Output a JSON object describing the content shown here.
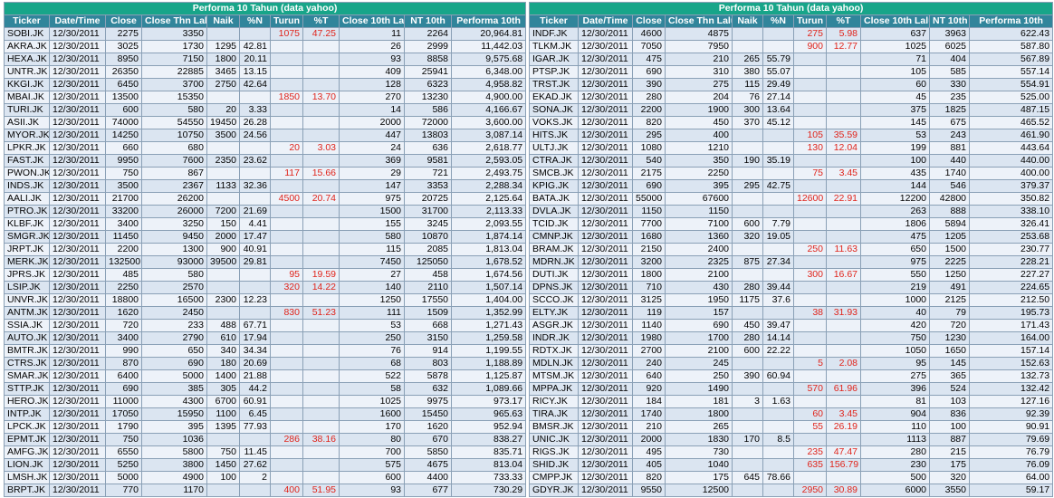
{
  "columns": [
    "Ticker",
    "Date/Time",
    "Close",
    "Close Thn Lalu",
    "Naik",
    "%N",
    "Turun",
    "%T",
    "Close 10th Lalu",
    "NT 10th",
    "Performa 10th"
  ],
  "tables": [
    {
      "title": "Performa 10 Tahun (data yahoo)",
      "rows": [
        [
          "SOBI.JK",
          "12/30/2011",
          "2275",
          "3350",
          "",
          "",
          "1075",
          "47.25",
          "11",
          "2264",
          "20,964.81"
        ],
        [
          "AKRA.JK",
          "12/30/2011",
          "3025",
          "1730",
          "1295",
          "42.81",
          "",
          "",
          "26",
          "2999",
          "11,442.03"
        ],
        [
          "HEXA.JK",
          "12/30/2011",
          "8950",
          "7150",
          "1800",
          "20.11",
          "",
          "",
          "93",
          "8858",
          "9,575.68"
        ],
        [
          "UNTR.JK",
          "12/30/2011",
          "26350",
          "22885",
          "3465",
          "13.15",
          "",
          "",
          "409",
          "25941",
          "6,348.00"
        ],
        [
          "KKGI.JK",
          "12/30/2011",
          "6450",
          "3700",
          "2750",
          "42.64",
          "",
          "",
          "128",
          "6323",
          "4,958.82"
        ],
        [
          "MBAI.JK",
          "12/30/2011",
          "13500",
          "15350",
          "",
          "",
          "1850",
          "13.70",
          "270",
          "13230",
          "4,900.00"
        ],
        [
          "TURI.JK",
          "12/30/2011",
          "600",
          "580",
          "20",
          "3.33",
          "",
          "",
          "14",
          "586",
          "4,166.67"
        ],
        [
          "ASII.JK",
          "12/30/2011",
          "74000",
          "54550",
          "19450",
          "26.28",
          "",
          "",
          "2000",
          "72000",
          "3,600.00"
        ],
        [
          "MYOR.JK",
          "12/30/2011",
          "14250",
          "10750",
          "3500",
          "24.56",
          "",
          "",
          "447",
          "13803",
          "3,087.14"
        ],
        [
          "LPKR.JK",
          "12/30/2011",
          "660",
          "680",
          "",
          "",
          "20",
          "3.03",
          "24",
          "636",
          "2,618.77"
        ],
        [
          "FAST.JK",
          "12/30/2011",
          "9950",
          "7600",
          "2350",
          "23.62",
          "",
          "",
          "369",
          "9581",
          "2,593.05"
        ],
        [
          "PWON.JK",
          "12/30/2011",
          "750",
          "867",
          "",
          "",
          "117",
          "15.66",
          "29",
          "721",
          "2,493.75"
        ],
        [
          "INDS.JK",
          "12/30/2011",
          "3500",
          "2367",
          "1133",
          "32.36",
          "",
          "",
          "147",
          "3353",
          "2,288.34"
        ],
        [
          "AALI.JK",
          "12/30/2011",
          "21700",
          "26200",
          "",
          "",
          "4500",
          "20.74",
          "975",
          "20725",
          "2,125.64"
        ],
        [
          "PTRO.JK",
          "12/30/2011",
          "33200",
          "26000",
          "7200",
          "21.69",
          "",
          "",
          "1500",
          "31700",
          "2,113.33"
        ],
        [
          "KLBF.JK",
          "12/30/2011",
          "3400",
          "3250",
          "150",
          "4.41",
          "",
          "",
          "155",
          "3245",
          "2,093.55"
        ],
        [
          "SMGR.JK",
          "12/30/2011",
          "11450",
          "9450",
          "2000",
          "17.47",
          "",
          "",
          "580",
          "10870",
          "1,874.14"
        ],
        [
          "JRPT.JK",
          "12/30/2011",
          "2200",
          "1300",
          "900",
          "40.91",
          "",
          "",
          "115",
          "2085",
          "1,813.04"
        ],
        [
          "MERK.JK",
          "12/30/2011",
          "132500",
          "93000",
          "39500",
          "29.81",
          "",
          "",
          "7450",
          "125050",
          "1,678.52"
        ],
        [
          "JPRS.JK",
          "12/30/2011",
          "485",
          "580",
          "",
          "",
          "95",
          "19.59",
          "27",
          "458",
          "1,674.56"
        ],
        [
          "LSIP.JK",
          "12/30/2011",
          "2250",
          "2570",
          "",
          "",
          "320",
          "14.22",
          "140",
          "2110",
          "1,507.14"
        ],
        [
          "UNVR.JK",
          "12/30/2011",
          "18800",
          "16500",
          "2300",
          "12.23",
          "",
          "",
          "1250",
          "17550",
          "1,404.00"
        ],
        [
          "ANTM.JK",
          "12/30/2011",
          "1620",
          "2450",
          "",
          "",
          "830",
          "51.23",
          "111",
          "1509",
          "1,352.99"
        ],
        [
          "SSIA.JK",
          "12/30/2011",
          "720",
          "233",
          "488",
          "67.71",
          "",
          "",
          "53",
          "668",
          "1,271.43"
        ],
        [
          "AUTO.JK",
          "12/30/2011",
          "3400",
          "2790",
          "610",
          "17.94",
          "",
          "",
          "250",
          "3150",
          "1,259.58"
        ],
        [
          "BMTR.JK",
          "12/30/2011",
          "990",
          "650",
          "340",
          "34.34",
          "",
          "",
          "76",
          "914",
          "1,199.55"
        ],
        [
          "CTRS.JK",
          "12/30/2011",
          "870",
          "690",
          "180",
          "20.69",
          "",
          "",
          "68",
          "803",
          "1,188.89"
        ],
        [
          "SMAR.JK",
          "12/30/2011",
          "6400",
          "5000",
          "1400",
          "21.88",
          "",
          "",
          "522",
          "5878",
          "1,125.87"
        ],
        [
          "STTP.JK",
          "12/30/2011",
          "690",
          "385",
          "305",
          "44.2",
          "",
          "",
          "58",
          "632",
          "1,089.66"
        ],
        [
          "HERO.JK",
          "12/30/2011",
          "11000",
          "4300",
          "6700",
          "60.91",
          "",
          "",
          "1025",
          "9975",
          "973.17"
        ],
        [
          "INTP.JK",
          "12/30/2011",
          "17050",
          "15950",
          "1100",
          "6.45",
          "",
          "",
          "1600",
          "15450",
          "965.63"
        ],
        [
          "LPCK.JK",
          "12/30/2011",
          "1790",
          "395",
          "1395",
          "77.93",
          "",
          "",
          "170",
          "1620",
          "952.94"
        ],
        [
          "EPMT.JK",
          "12/30/2011",
          "750",
          "1036",
          "",
          "",
          "286",
          "38.16",
          "80",
          "670",
          "838.27"
        ],
        [
          "AMFG.JK",
          "12/30/2011",
          "6550",
          "5800",
          "750",
          "11.45",
          "",
          "",
          "700",
          "5850",
          "835.71"
        ],
        [
          "LION.JK",
          "12/30/2011",
          "5250",
          "3800",
          "1450",
          "27.62",
          "",
          "",
          "575",
          "4675",
          "813.04"
        ],
        [
          "LMSH.JK",
          "12/30/2011",
          "5000",
          "4900",
          "100",
          "2",
          "",
          "",
          "600",
          "4400",
          "733.33"
        ],
        [
          "BRPT.JK",
          "12/30/2011",
          "770",
          "1170",
          "",
          "",
          "400",
          "51.95",
          "93",
          "677",
          "730.29"
        ]
      ]
    },
    {
      "title": "Performa 10 Tahun (data yahoo)",
      "rows": [
        [
          "INDF.JK",
          "12/30/2011",
          "4600",
          "4875",
          "",
          "",
          "275",
          "5.98",
          "637",
          "3963",
          "622.43"
        ],
        [
          "TLKM.JK",
          "12/30/2011",
          "7050",
          "7950",
          "",
          "",
          "900",
          "12.77",
          "1025",
          "6025",
          "587.80"
        ],
        [
          "IGAR.JK",
          "12/30/2011",
          "475",
          "210",
          "265",
          "55.79",
          "",
          "",
          "71",
          "404",
          "567.89"
        ],
        [
          "PTSP.JK",
          "12/30/2011",
          "690",
          "310",
          "380",
          "55.07",
          "",
          "",
          "105",
          "585",
          "557.14"
        ],
        [
          "TRST.JK",
          "12/30/2011",
          "390",
          "275",
          "115",
          "29.49",
          "",
          "",
          "60",
          "330",
          "554.91"
        ],
        [
          "EKAD.JK",
          "12/30/2011",
          "280",
          "204",
          "76",
          "27.14",
          "",
          "",
          "45",
          "235",
          "525.00"
        ],
        [
          "SONA.JK",
          "12/30/2011",
          "2200",
          "1900",
          "300",
          "13.64",
          "",
          "",
          "375",
          "1825",
          "487.15"
        ],
        [
          "VOKS.JK",
          "12/30/2011",
          "820",
          "450",
          "370",
          "45.12",
          "",
          "",
          "145",
          "675",
          "465.52"
        ],
        [
          "HITS.JK",
          "12/30/2011",
          "295",
          "400",
          "",
          "",
          "105",
          "35.59",
          "53",
          "243",
          "461.90"
        ],
        [
          "ULTJ.JK",
          "12/30/2011",
          "1080",
          "1210",
          "",
          "",
          "130",
          "12.04",
          "199",
          "881",
          "443.64"
        ],
        [
          "CTRA.JK",
          "12/30/2011",
          "540",
          "350",
          "190",
          "35.19",
          "",
          "",
          "100",
          "440",
          "440.00"
        ],
        [
          "SMCB.JK",
          "12/30/2011",
          "2175",
          "2250",
          "",
          "",
          "75",
          "3.45",
          "435",
          "1740",
          "400.00"
        ],
        [
          "KPIG.JK",
          "12/30/2011",
          "690",
          "395",
          "295",
          "42.75",
          "",
          "",
          "144",
          "546",
          "379.37"
        ],
        [
          "BATA.JK",
          "12/30/2011",
          "55000",
          "67600",
          "",
          "",
          "12600",
          "22.91",
          "12200",
          "42800",
          "350.82"
        ],
        [
          "DVLA.JK",
          "12/30/2011",
          "1150",
          "1150",
          "",
          "",
          "",
          "",
          "263",
          "888",
          "338.10"
        ],
        [
          "TCID.JK",
          "12/30/2011",
          "7700",
          "7100",
          "600",
          "7.79",
          "",
          "",
          "1806",
          "5894",
          "326.41"
        ],
        [
          "CMNP.JK",
          "12/30/2011",
          "1680",
          "1360",
          "320",
          "19.05",
          "",
          "",
          "475",
          "1205",
          "253.68"
        ],
        [
          "BRAM.JK",
          "12/30/2011",
          "2150",
          "2400",
          "",
          "",
          "250",
          "11.63",
          "650",
          "1500",
          "230.77"
        ],
        [
          "MDRN.JK",
          "12/30/2011",
          "3200",
          "2325",
          "875",
          "27.34",
          "",
          "",
          "975",
          "2225",
          "228.21"
        ],
        [
          "DUTI.JK",
          "12/30/2011",
          "1800",
          "2100",
          "",
          "",
          "300",
          "16.67",
          "550",
          "1250",
          "227.27"
        ],
        [
          "DPNS.JK",
          "12/30/2011",
          "710",
          "430",
          "280",
          "39.44",
          "",
          "",
          "219",
          "491",
          "224.65"
        ],
        [
          "SCCO.JK",
          "12/30/2011",
          "3125",
          "1950",
          "1175",
          "37.6",
          "",
          "",
          "1000",
          "2125",
          "212.50"
        ],
        [
          "ELTY.JK",
          "12/30/2011",
          "119",
          "157",
          "",
          "",
          "38",
          "31.93",
          "40",
          "79",
          "195.73"
        ],
        [
          "ASGR.JK",
          "12/30/2011",
          "1140",
          "690",
          "450",
          "39.47",
          "",
          "",
          "420",
          "720",
          "171.43"
        ],
        [
          "INDR.JK",
          "12/30/2011",
          "1980",
          "1700",
          "280",
          "14.14",
          "",
          "",
          "750",
          "1230",
          "164.00"
        ],
        [
          "RDTX.JK",
          "12/30/2011",
          "2700",
          "2100",
          "600",
          "22.22",
          "",
          "",
          "1050",
          "1650",
          "157.14"
        ],
        [
          "MDLN.JK",
          "12/30/2011",
          "240",
          "245",
          "",
          "",
          "5",
          "2.08",
          "95",
          "145",
          "152.63"
        ],
        [
          "MTSM.JK",
          "12/30/2011",
          "640",
          "250",
          "390",
          "60.94",
          "",
          "",
          "275",
          "365",
          "132.73"
        ],
        [
          "MPPA.JK",
          "12/30/2011",
          "920",
          "1490",
          "",
          "",
          "570",
          "61.96",
          "396",
          "524",
          "132.42"
        ],
        [
          "RICY.JK",
          "12/30/2011",
          "184",
          "181",
          "3",
          "1.63",
          "",
          "",
          "81",
          "103",
          "127.16"
        ],
        [
          "TIRA.JK",
          "12/30/2011",
          "1740",
          "1800",
          "",
          "",
          "60",
          "3.45",
          "904",
          "836",
          "92.39"
        ],
        [
          "BMSR.JK",
          "12/30/2011",
          "210",
          "265",
          "",
          "",
          "55",
          "26.19",
          "110",
          "100",
          "90.91"
        ],
        [
          "UNIC.JK",
          "12/30/2011",
          "2000",
          "1830",
          "170",
          "8.5",
          "",
          "",
          "1113",
          "887",
          "79.69"
        ],
        [
          "RIGS.JK",
          "12/30/2011",
          "495",
          "730",
          "",
          "",
          "235",
          "47.47",
          "280",
          "215",
          "76.79"
        ],
        [
          "SHID.JK",
          "12/30/2011",
          "405",
          "1040",
          "",
          "",
          "635",
          "156.79",
          "230",
          "175",
          "76.09"
        ],
        [
          "CMPP.JK",
          "12/30/2011",
          "820",
          "175",
          "645",
          "78.66",
          "",
          "",
          "500",
          "320",
          "64.00"
        ],
        [
          "GDYR.JK",
          "12/30/2011",
          "9550",
          "12500",
          "",
          "",
          "2950",
          "30.89",
          "6000",
          "3550",
          "59.17"
        ]
      ]
    }
  ],
  "colors": {
    "header_bg": "#31859b",
    "title_bg": "#17a589",
    "row_bg": "#dbe5f1",
    "row_alt_bg": "#edf2f9",
    "loss_text": "#e0241b"
  }
}
